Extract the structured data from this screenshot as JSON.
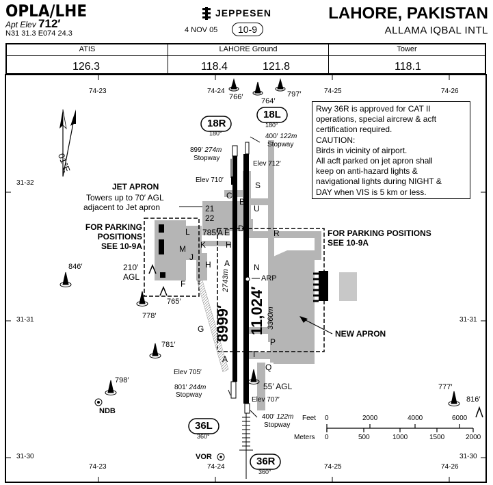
{
  "header": {
    "ident": "OPLA/LHE",
    "apt_elev_label": "Apt Elev",
    "apt_elev_value": "712′",
    "coordinates": "N31 31.3  E074 24.3",
    "brand": "JEPPESEN",
    "date": "4 NOV 05",
    "chart_number": "10-9",
    "city": "LAHORE, PAKISTAN",
    "airport_name": "ALLAMA IQBAL INTL"
  },
  "frequencies": [
    {
      "label": "ATIS",
      "values": [
        "126.3"
      ]
    },
    {
      "label": "LAHORE Ground",
      "values": [
        "118.4",
        "121.8"
      ]
    },
    {
      "label": "Tower",
      "values": [
        "118.1"
      ]
    }
  ],
  "notes": [
    "Rwy 36R is approved for CAT II",
    "operations, special aircrew & acft",
    "certification required.",
    "CAUTION:",
    "Birds in vicinity of airport.",
    "All acft parked on jet apron shall",
    "keep on anti-hazard lights &",
    "navigational lights during NIGHT &",
    "DAY when VIS is 5 km or less."
  ],
  "grid": {
    "longitudes": [
      "74-23",
      "74-24",
      "74-25",
      "74-26"
    ],
    "latitudes": [
      "31-32",
      "31-31",
      "31-30"
    ]
  },
  "magnetic_variation": "01°E",
  "runways": {
    "rwy_18R": {
      "ident": "18R",
      "heading": "180°",
      "elev": "Elev 710′",
      "stopway_ft": "899′",
      "stopway_m": "274m",
      "stopway_label": "Stopway"
    },
    "rwy_18L": {
      "ident": "18L",
      "heading": "180°",
      "elev": "Elev 712′",
      "stopway_ft": "400′",
      "stopway_m": "122m",
      "stopway_label": "Stopway"
    },
    "rwy_36L": {
      "ident": "36L",
      "heading": "360°",
      "elev": "Elev 705′",
      "stopway_ft": "801′",
      "stopway_m": "244m",
      "stopway_label": "Stopway"
    },
    "rwy_36R": {
      "ident": "36R",
      "heading": "360°",
      "elev": "Elev 707′",
      "stopway_ft": "400′",
      "stopway_m": "122m",
      "stopway_label": "Stopway"
    },
    "left_length_ft": "8999′",
    "left_length_m": "2743m",
    "right_length_ft": "11,024′",
    "right_length_m": "3360m"
  },
  "labels": {
    "jet_apron_title": "JET APRON",
    "jet_apron_note_1": "Towers up to 70′ AGL",
    "jet_apron_note_2": "adjacent to Jet apron",
    "parking_left_1": "FOR PARKING",
    "parking_left_2": "POSITIONS",
    "parking_left_3": "SEE 10-9A",
    "parking_right_1": "FOR PARKING POSITIONS",
    "parking_right_2": "SEE 10-9A",
    "new_apron": "NEW APRON",
    "arp": "ARP",
    "ndb": "NDB",
    "vor": "VOR",
    "agl_210_1": "210′",
    "agl_210_2": "AGL",
    "agl_55": "55′ AGL"
  },
  "taxiways": [
    "C",
    "B",
    "S",
    "U",
    "D",
    "R",
    "21",
    "22",
    "785′",
    "A",
    "E",
    "H",
    "K",
    "L",
    "M",
    "J",
    "H",
    "F",
    "N",
    "A",
    "G",
    "P",
    "T",
    "Q",
    "A"
  ],
  "obstacles": [
    "766′",
    "764′",
    "797′",
    "846′",
    "778′",
    "765′",
    "781′",
    "798′",
    "777′",
    "816′"
  ],
  "scale": {
    "feet_label": "Feet",
    "feet_ticks": [
      "0",
      "2000",
      "4000",
      "6000"
    ],
    "meters_label": "Meters",
    "meters_ticks": [
      "0",
      "500",
      "1000",
      "1500",
      "2000"
    ]
  }
}
